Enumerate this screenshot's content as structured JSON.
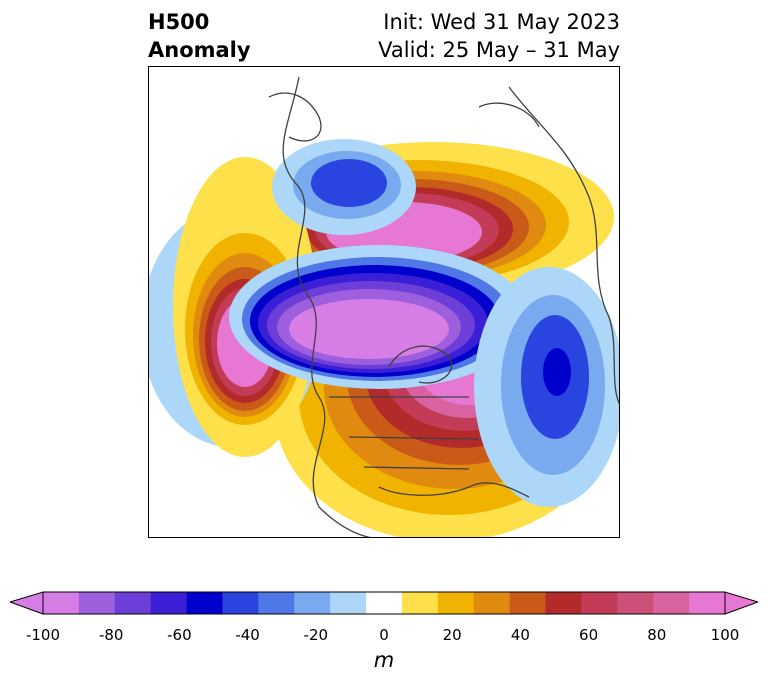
{
  "header": {
    "title_line1": "H500",
    "title_line2": "Anomaly",
    "init": "Init: Wed 31 May 2023",
    "valid": "Valid: 25 May – 31 May"
  },
  "map": {
    "field": "500 hPa geopotential height anomaly",
    "projection": "north-polar-stereographic",
    "features": [
      "coastlines",
      "country-borders",
      "us-state-borders"
    ],
    "anomaly_centers": [
      {
        "sign": "positive",
        "region": "western Canada / Alaska",
        "strength": "strong"
      },
      {
        "sign": "positive",
        "region": "Arctic Ocean / Siberia",
        "strength": "strong"
      },
      {
        "sign": "positive",
        "region": "North Pacific",
        "strength": "strong"
      },
      {
        "sign": "negative",
        "region": "Greenland / northern Atlantic",
        "strength": "strong"
      },
      {
        "sign": "negative",
        "region": "north-central Siberia",
        "strength": "moderate"
      },
      {
        "sign": "negative",
        "region": "Gulf of Alaska / NE Pacific",
        "strength": "strong"
      }
    ]
  },
  "colorbar": {
    "unit": "m",
    "ticks": [
      "-100",
      "-80",
      "-60",
      "-40",
      "-20",
      "0",
      "20",
      "40",
      "60",
      "80",
      "100"
    ],
    "bins": [
      -100,
      -90,
      -80,
      -70,
      -60,
      -50,
      -40,
      -30,
      -20,
      -10,
      10,
      20,
      30,
      40,
      50,
      60,
      70,
      80,
      90,
      100
    ],
    "colors": [
      "#d77ee6",
      "#9e5fde",
      "#6e3ed8",
      "#3a1fd6",
      "#0000cc",
      "#2a44e0",
      "#4f78e6",
      "#79aaf0",
      "#acd7f8",
      "#ffffff",
      "#fde04a",
      "#f0b400",
      "#e08a10",
      "#c95a18",
      "#b22a2a",
      "#c23c58",
      "#cc5078",
      "#d962a0",
      "#e678d4"
    ],
    "extend_low_color": "#d77ee6",
    "extend_high_color": "#e678d4"
  }
}
